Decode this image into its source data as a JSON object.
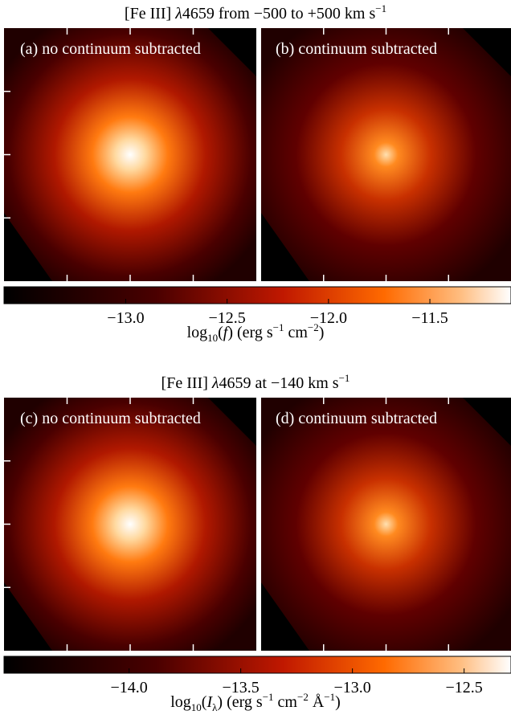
{
  "figures": [
    {
      "title": [
        {
          "text": "[Fe III] ",
          "style": "normal"
        },
        {
          "text": "λ",
          "style": "italic"
        },
        {
          "text": "4659 from −500 to +500 km s",
          "style": "normal"
        },
        {
          "text": "−1",
          "style": "sup"
        }
      ],
      "panels": [
        "(a) no continuum subtracted",
        "(b) continuum subtracted"
      ],
      "colorbar": {
        "lim": [
          -13.6,
          -11.1
        ],
        "ticks": [
          {
            "value": -13,
            "label": "−13.0"
          },
          {
            "value": -12.5,
            "label": "−12.5"
          },
          {
            "value": -12,
            "label": "−12.0"
          },
          {
            "value": -11.5,
            "label": "−11.5"
          }
        ],
        "label": [
          {
            "text": "log",
            "style": "normal"
          },
          {
            "text": "10",
            "style": "sub"
          },
          {
            "text": "(",
            "style": "normal"
          },
          {
            "text": "f",
            "style": "italic"
          },
          {
            "text": ") (erg s",
            "style": "normal"
          },
          {
            "text": "−1",
            "style": "sup"
          },
          {
            "text": " cm",
            "style": "normal"
          },
          {
            "text": "−2",
            "style": "sup"
          },
          {
            "text": ")",
            "style": "normal"
          }
        ]
      }
    },
    {
      "title": [
        {
          "text": "[Fe III] ",
          "style": "normal"
        },
        {
          "text": "λ",
          "style": "italic"
        },
        {
          "text": "4659 at −140 km s",
          "style": "normal"
        },
        {
          "text": "−1",
          "style": "sup"
        }
      ],
      "panels": [
        "(c) no continuum subtracted",
        "(d) continuum subtracted"
      ],
      "colorbar": {
        "lim": [
          -14.56,
          -12.29
        ],
        "ticks": [
          {
            "value": -14,
            "label": "−14.0"
          },
          {
            "value": -13.5,
            "label": "−13.5"
          },
          {
            "value": -13,
            "label": "−13.0"
          },
          {
            "value": -12.5,
            "label": "−12.5"
          }
        ],
        "label": [
          {
            "text": "log",
            "style": "normal"
          },
          {
            "text": "10",
            "style": "sub"
          },
          {
            "text": "(",
            "style": "normal"
          },
          {
            "text": "I",
            "style": "italic"
          },
          {
            "text": "λ",
            "style": "sub"
          },
          {
            "text": ") (erg s",
            "style": "normal"
          },
          {
            "text": "−1",
            "style": "sup"
          },
          {
            "text": " cm",
            "style": "normal"
          },
          {
            "text": "−2",
            "style": "sup"
          },
          {
            "text": " Å",
            "style": "normal"
          },
          {
            "text": "−1",
            "style": "sup"
          },
          {
            "text": ")",
            "style": "normal"
          }
        ]
      }
    }
  ]
}
